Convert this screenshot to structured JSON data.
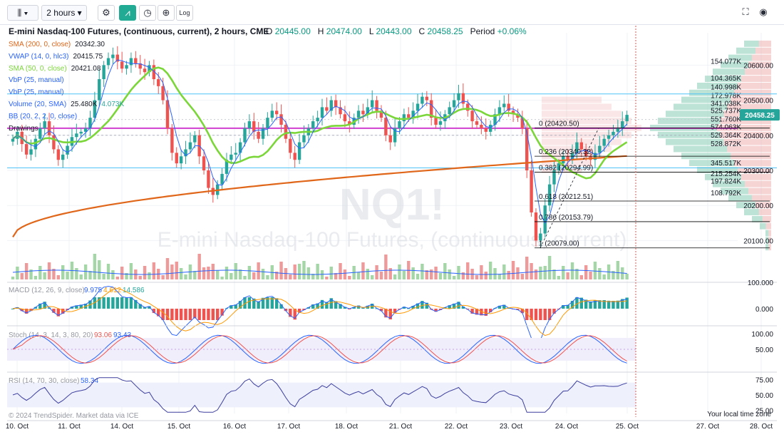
{
  "toolbar": {
    "interval": "2 hours",
    "log_label": "Log"
  },
  "header": {
    "title": "E-mini Nasdaq-100 Futures, (continuous, current), 2 hours, CME",
    "o_label": "O",
    "o_value": "20445.00",
    "h_label": "H",
    "h_value": "20474.00",
    "l_label": "L",
    "l_value": "20443.00",
    "c_label": "C",
    "c_value": "20458.25",
    "period_label": "Period",
    "period_value": "+0.06%"
  },
  "indicators": [
    {
      "label": "SMA (200, 0, close)",
      "value": "20342.30",
      "color": "#e0661a"
    },
    {
      "label": "VWAP (14, 0, hlc3)",
      "value": "20415.75",
      "color": "#2962ff"
    },
    {
      "label": "SMA (50, 0, close)",
      "value": "20421.08",
      "color": "#7bd639"
    },
    {
      "label": "VbP (25, manual)",
      "value": "",
      "color": "#2962ff"
    },
    {
      "label": "VbP (25, manual)",
      "value": "",
      "color": "#2962ff"
    },
    {
      "label": "Volume (20, SMA)",
      "value": "25.480K",
      "value2": "4.073K",
      "color": "#2962ff"
    },
    {
      "label": "BB (20, 2, 2, 0, close)",
      "value": "",
      "color": "#2962ff"
    },
    {
      "label": "Drawings",
      "value": "",
      "color": "#131722"
    }
  ],
  "watermark": {
    "symbol": "NQ1!",
    "name": "E-mini Nasdaq-100 Futures, (continuous, current)"
  },
  "price_badge": "20458.25",
  "colors": {
    "up": "#26a69a",
    "down": "#ef5350",
    "sma200": "#e0661a",
    "sma50": "#7bd639",
    "vwap": "#2962ff",
    "fib": "#000000",
    "vbp_up": "#a6d9c8",
    "vbp_down": "#f0b7b7",
    "magenta": "#d13fd1"
  },
  "chart_data": [
    {
      "type": "candlestick",
      "title": "E-mini Nasdaq-100 Futures, (continuous, current), 2 hours, CME",
      "x_ticks": [
        "10. Oct",
        "11. Oct",
        "14. Oct",
        "15. Oct",
        "16. Oct",
        "17. Oct",
        "18. Oct",
        "21. Oct",
        "22. Oct",
        "23. Oct",
        "24. Oct",
        "25. Oct",
        "27. Oct",
        "28. Oct"
      ],
      "y_ticks": [
        "20600.00",
        "20500.00",
        "20400.00",
        "20300.00",
        "20200.00",
        "20100.00"
      ],
      "ylim": [
        20050,
        20680
      ],
      "closes": [
        20390,
        20410,
        20375,
        20345,
        20360,
        20390,
        20420,
        20440,
        20400,
        20360,
        20330,
        20345,
        20370,
        20395,
        20405,
        20410,
        20420,
        20450,
        20500,
        20560,
        20600,
        20620,
        20630,
        20610,
        20590,
        20600,
        20620,
        20605,
        20590,
        20580,
        20600,
        20560,
        20540,
        20500,
        20420,
        20350,
        20320,
        20340,
        20360,
        20380,
        20400,
        20340,
        20300,
        20250,
        20230,
        20260,
        20290,
        20330,
        20345,
        20350,
        20380,
        20420,
        20440,
        20410,
        20390,
        20420,
        20450,
        20470,
        20460,
        20430,
        20390,
        20350,
        20330,
        20380,
        20400,
        20420,
        20440,
        20450,
        20480,
        20470,
        20500,
        20480,
        20460,
        20440,
        20430,
        20450,
        20470,
        20460,
        20480,
        20500,
        20470,
        20450,
        20400,
        20380,
        20420,
        20440,
        20460,
        20450,
        20470,
        20490,
        20510,
        20500,
        20450,
        20430,
        20440,
        20460,
        20480,
        20500,
        20520,
        20490,
        20470,
        20440,
        20430,
        20420,
        20410,
        20430,
        20460,
        20480,
        20490,
        20470,
        20460,
        20450,
        20420,
        20300,
        20180,
        20100,
        20120,
        20200,
        20260,
        20300,
        20320,
        20340,
        20330,
        20350,
        20380,
        20360,
        20340,
        20330,
        20350,
        20370,
        20390,
        20400,
        20410,
        20420,
        20440,
        20458.25
      ],
      "sma200_ends": [
        20110,
        20341
      ],
      "fib_levels": [
        {
          "ratio": "0",
          "value": "20420.50",
          "color": "#000000"
        },
        {
          "ratio": "0.236",
          "value": "20340.32",
          "color": "#000000"
        },
        {
          "ratio": "0.382",
          "value": "20294.99",
          "color": "#000000"
        },
        {
          "ratio": "0.618",
          "value": "20212.51",
          "color": "#000000"
        },
        {
          "ratio": "0.786",
          "value": "20153.79",
          "color": "#000000"
        },
        {
          "ratio": "1",
          "value": "20079.00",
          "color": "#000000"
        }
      ],
      "vbp_labels": [
        {
          "text": "154.077K",
          "price": 20610
        },
        {
          "text": "104.365K",
          "price": 20562
        },
        {
          "text": "140.998K",
          "price": 20537
        },
        {
          "text": "172.978K",
          "price": 20512
        },
        {
          "text": "341.038K",
          "price": 20490
        },
        {
          "text": "525.737K",
          "price": 20470
        },
        {
          "text": "551.760K",
          "price": 20445
        },
        {
          "text": "574.063K",
          "price": 20423
        },
        {
          "text": "529.364K",
          "price": 20400
        },
        {
          "text": "528.872K",
          "price": 20375
        },
        {
          "text": "345.517K",
          "price": 20320
        },
        {
          "text": "215.254K",
          "price": 20290
        },
        {
          "text": "197.824K",
          "price": 20268
        },
        {
          "text": "108.792K",
          "price": 20235
        }
      ]
    },
    {
      "type": "bar",
      "title": "Volume (20, SMA)",
      "y_ticks": [
        "100.000"
      ]
    },
    {
      "type": "line",
      "title": "MACD (12, 26, 9, close)",
      "values_label": [
        "9.975",
        "4.612",
        "14.586"
      ],
      "y_ticks": [
        "0.000"
      ]
    },
    {
      "type": "line",
      "title": "Stoch (14, 3, 14, 3, 80, 20)",
      "values_label": [
        "93.06",
        "93.43"
      ],
      "y_ticks": [
        "100.00",
        "50.00"
      ]
    },
    {
      "type": "line",
      "title": "RSI (14, 70, 30, close)",
      "values_label": [
        "58.34"
      ],
      "y_ticks": [
        "75.00",
        "50.00",
        "25.00"
      ]
    }
  ],
  "footer": {
    "copyright": "© 2024 TrendSpider. Market data via ICE",
    "local_time": "Your local time zone"
  }
}
